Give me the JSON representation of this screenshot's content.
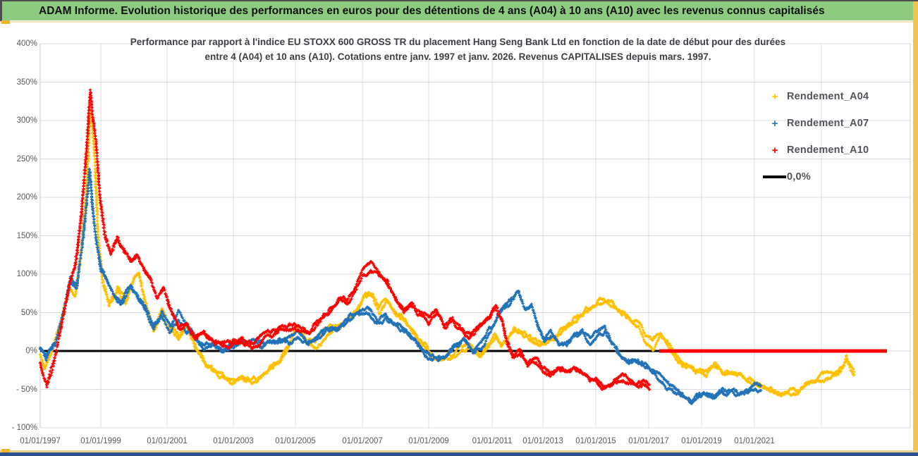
{
  "window": {
    "header_title": "ADAM Informe. Evolution historique des performances en euros pour des détentions de 4 ans (A04) à 10 ans (A10) avec les revenus connus capitalisés"
  },
  "chart_data": {
    "type": "scatter",
    "title_line1": "Performance par rapport à l'indice EU STOXX 600 GROSS TR  du placement Hang Seng Bank Ltd en fonction de la date de début pour des durées",
    "title_line2": "entre 4 (A04) et 10 ans (A10).  Cotations entre janv. 1997 et janv. 2026.  Revenus CAPITALISES depuis mars. 1997.",
    "grid": true,
    "y_axis": {
      "unit": "%",
      "min": -100,
      "max": 400,
      "step": 50,
      "tick_labels": [
        "400%",
        "350%",
        "300%",
        "250%",
        "200%",
        "150%",
        "100%",
        "50%",
        "0%",
        "- 50%",
        "- 100%"
      ]
    },
    "x_axis": {
      "ticks": [
        {
          "label": "01/01/1997",
          "year": 1997
        },
        {
          "label": "01/01/1999",
          "year": 1999
        },
        {
          "label": "01/01/2001",
          "year": 2001
        },
        {
          "label": "01/01/2003",
          "year": 2003
        },
        {
          "label": "01/01/2005",
          "year": 2005
        },
        {
          "label": "01/01/2007",
          "year": 2007
        },
        {
          "label": "01/01/2009",
          "year": 2009
        },
        {
          "label": "01/01/2011",
          "year": 2011
        },
        {
          "label": "01/01/2013",
          "year": 2013
        },
        {
          "label": "01/01/2015",
          "year": 2015
        },
        {
          "label": "01/01/2017",
          "year": 2017
        },
        {
          "label": "01/01/2019",
          "year": 2019
        },
        {
          "label": "01/01/2021",
          "year": 2021
        }
      ],
      "extra_gridline_years": [
        2023
      ],
      "range_note": "cotations janv. 1997 - janv. 2026"
    },
    "legend": [
      {
        "label": "Rendement_A04",
        "marker": "+",
        "color": "#FFC000"
      },
      {
        "label": "Rendement_A07",
        "marker": "+",
        "color": "#2272B8"
      },
      {
        "label": "Rendement_A10",
        "marker": "+",
        "color": "#FF0000"
      },
      {
        "label": "0,0%",
        "marker": "line",
        "color": "#000000"
      }
    ],
    "zero_line": {
      "label": "0,0%",
      "value": 0,
      "color": "#000000",
      "from_year": 1997,
      "to_year": 2026
    },
    "flat_zero_segment": {
      "series": "Rendement_A10",
      "value": 0,
      "color": "#FF0000",
      "from_year": 2017.4,
      "to_year": 2026
    },
    "series": [
      {
        "name": "Rendement_A04",
        "color": "#FFC000",
        "seed": 11,
        "points": [
          [
            1997.0,
            -5
          ],
          [
            1997.15,
            -22
          ],
          [
            1997.4,
            2
          ],
          [
            1997.7,
            40
          ],
          [
            1997.95,
            85
          ],
          [
            1998.15,
            72
          ],
          [
            1998.35,
            130
          ],
          [
            1998.5,
            195
          ],
          [
            1998.62,
            300
          ],
          [
            1998.68,
            310
          ],
          [
            1998.78,
            260
          ],
          [
            1998.9,
            150
          ],
          [
            1999.05,
            95
          ],
          [
            1999.25,
            60
          ],
          [
            1999.5,
            80
          ],
          [
            1999.75,
            65
          ],
          [
            2000.0,
            95
          ],
          [
            2000.15,
            100
          ],
          [
            2000.35,
            60
          ],
          [
            2000.6,
            30
          ],
          [
            2000.85,
            52
          ],
          [
            2001.1,
            30
          ],
          [
            2001.35,
            18
          ],
          [
            2001.6,
            30
          ],
          [
            2001.85,
            5
          ],
          [
            2002.1,
            -12
          ],
          [
            2002.4,
            -25
          ],
          [
            2002.7,
            -35
          ],
          [
            2003.0,
            -45
          ],
          [
            2003.3,
            -38
          ],
          [
            2003.6,
            -42
          ],
          [
            2003.9,
            -32
          ],
          [
            2004.2,
            -22
          ],
          [
            2004.5,
            -12
          ],
          [
            2004.8,
            5
          ],
          [
            2005.0,
            28
          ],
          [
            2005.3,
            15
          ],
          [
            2005.6,
            8
          ],
          [
            2005.9,
            22
          ],
          [
            2006.2,
            30
          ],
          [
            2006.5,
            38
          ],
          [
            2006.8,
            50
          ],
          [
            2007.05,
            68
          ],
          [
            2007.3,
            72
          ],
          [
            2007.5,
            52
          ],
          [
            2007.75,
            62
          ],
          [
            2008.0,
            48
          ],
          [
            2008.3,
            38
          ],
          [
            2008.6,
            18
          ],
          [
            2008.9,
            5
          ],
          [
            2009.1,
            -8
          ],
          [
            2009.4,
            -15
          ],
          [
            2009.7,
            -10
          ],
          [
            2010.0,
            2
          ],
          [
            2010.3,
            8
          ],
          [
            2010.6,
            -8
          ],
          [
            2010.9,
            5
          ],
          [
            2011.1,
            18
          ],
          [
            2011.35,
            5
          ],
          [
            2011.6,
            15
          ],
          [
            2011.9,
            28
          ],
          [
            2012.2,
            22
          ],
          [
            2012.5,
            15
          ],
          [
            2012.8,
            10
          ],
          [
            2013.1,
            8
          ],
          [
            2013.4,
            18
          ],
          [
            2013.7,
            28
          ],
          [
            2014.0,
            35
          ],
          [
            2014.3,
            45
          ],
          [
            2014.6,
            52
          ],
          [
            2014.9,
            60
          ],
          [
            2015.2,
            68
          ],
          [
            2015.45,
            65
          ],
          [
            2015.7,
            60
          ],
          [
            2016.0,
            50
          ],
          [
            2016.3,
            42
          ],
          [
            2016.6,
            38
          ],
          [
            2016.9,
            15
          ],
          [
            2017.15,
            8
          ],
          [
            2017.45,
            22
          ],
          [
            2017.7,
            12
          ],
          [
            2018.0,
            -8
          ],
          [
            2018.3,
            -18
          ],
          [
            2018.6,
            -22
          ],
          [
            2018.9,
            -25
          ],
          [
            2019.2,
            -28
          ],
          [
            2019.5,
            -18
          ],
          [
            2019.8,
            -26
          ],
          [
            2020.1,
            -22
          ],
          [
            2020.4,
            -28
          ],
          [
            2020.7,
            -32
          ],
          [
            2021.0,
            -40
          ],
          [
            2021.4,
            -48
          ],
          [
            2021.8,
            -55
          ],
          [
            2022.2,
            -52
          ],
          [
            2022.6,
            -42
          ],
          [
            2023.0,
            -35
          ],
          [
            2023.5,
            -32
          ],
          [
            2023.9,
            -28
          ],
          [
            2024.15,
            -10
          ],
          [
            2024.35,
            -22
          ],
          [
            2024.5,
            -28
          ]
        ]
      },
      {
        "name": "Rendement_A07",
        "color": "#2272B8",
        "seed": 22,
        "points": [
          [
            1997.0,
            3
          ],
          [
            1997.2,
            -12
          ],
          [
            1997.5,
            8
          ],
          [
            1997.8,
            50
          ],
          [
            1998.0,
            88
          ],
          [
            1998.2,
            78
          ],
          [
            1998.4,
            140
          ],
          [
            1998.55,
            200
          ],
          [
            1998.62,
            235
          ],
          [
            1998.72,
            185
          ],
          [
            1998.85,
            140
          ],
          [
            1999.0,
            105
          ],
          [
            1999.3,
            80
          ],
          [
            1999.6,
            62
          ],
          [
            1999.9,
            85
          ],
          [
            2000.1,
            72
          ],
          [
            2000.35,
            55
          ],
          [
            2000.6,
            32
          ],
          [
            2000.85,
            48
          ],
          [
            2001.1,
            28
          ],
          [
            2001.35,
            45
          ],
          [
            2001.6,
            30
          ],
          [
            2001.85,
            18
          ],
          [
            2002.1,
            8
          ],
          [
            2002.4,
            12
          ],
          [
            2002.7,
            -2
          ],
          [
            2003.0,
            4
          ],
          [
            2003.3,
            10
          ],
          [
            2003.6,
            14
          ],
          [
            2003.9,
            8
          ],
          [
            2004.2,
            12
          ],
          [
            2004.5,
            16
          ],
          [
            2004.8,
            12
          ],
          [
            2005.1,
            20
          ],
          [
            2005.4,
            12
          ],
          [
            2005.7,
            20
          ],
          [
            2006.0,
            30
          ],
          [
            2006.3,
            36
          ],
          [
            2006.6,
            42
          ],
          [
            2006.9,
            46
          ],
          [
            2007.2,
            50
          ],
          [
            2007.45,
            38
          ],
          [
            2007.7,
            42
          ],
          [
            2008.0,
            32
          ],
          [
            2008.3,
            28
          ],
          [
            2008.6,
            12
          ],
          [
            2008.9,
            -2
          ],
          [
            2009.2,
            -8
          ],
          [
            2009.5,
            -10
          ],
          [
            2009.8,
            5
          ],
          [
            2010.1,
            16
          ],
          [
            2010.4,
            -2
          ],
          [
            2010.7,
            8
          ],
          [
            2011.0,
            30
          ],
          [
            2011.3,
            50
          ],
          [
            2011.6,
            62
          ],
          [
            2011.85,
            70
          ],
          [
            2012.05,
            76
          ],
          [
            2012.3,
            55
          ],
          [
            2012.55,
            62
          ],
          [
            2012.8,
            35
          ],
          [
            2013.05,
            18
          ],
          [
            2013.3,
            25
          ],
          [
            2013.6,
            10
          ],
          [
            2013.9,
            12
          ],
          [
            2014.2,
            20
          ],
          [
            2014.5,
            24
          ],
          [
            2014.8,
            12
          ],
          [
            2015.1,
            20
          ],
          [
            2015.35,
            26
          ],
          [
            2015.6,
            10
          ],
          [
            2015.9,
            -5
          ],
          [
            2016.2,
            -10
          ],
          [
            2016.5,
            -8
          ],
          [
            2016.8,
            -14
          ],
          [
            2017.1,
            -20
          ],
          [
            2017.4,
            -32
          ],
          [
            2017.7,
            -42
          ],
          [
            2018.0,
            -50
          ],
          [
            2018.3,
            -56
          ],
          [
            2018.6,
            -60
          ],
          [
            2018.9,
            -57
          ],
          [
            2019.2,
            -55
          ],
          [
            2019.5,
            -58
          ],
          [
            2019.8,
            -52
          ],
          [
            2020.1,
            -56
          ],
          [
            2020.4,
            -60
          ],
          [
            2020.7,
            -52
          ],
          [
            2021.0,
            -44
          ],
          [
            2021.2,
            -46
          ]
        ]
      },
      {
        "name": "Rendement_A10",
        "color": "#FF0000",
        "seed": 33,
        "points": [
          [
            1997.0,
            -15
          ],
          [
            1997.1,
            -32
          ],
          [
            1997.22,
            -44
          ],
          [
            1997.45,
            -15
          ],
          [
            1997.7,
            35
          ],
          [
            1997.95,
            90
          ],
          [
            1998.15,
            115
          ],
          [
            1998.35,
            175
          ],
          [
            1998.5,
            250
          ],
          [
            1998.6,
            315
          ],
          [
            1998.65,
            340
          ],
          [
            1998.72,
            310
          ],
          [
            1998.82,
            280
          ],
          [
            1998.95,
            210
          ],
          [
            1999.1,
            155
          ],
          [
            1999.3,
            128
          ],
          [
            1999.5,
            150
          ],
          [
            1999.7,
            132
          ],
          [
            1999.9,
            118
          ],
          [
            2000.1,
            125
          ],
          [
            2000.3,
            105
          ],
          [
            2000.5,
            92
          ],
          [
            2000.7,
            68
          ],
          [
            2000.9,
            82
          ],
          [
            2001.1,
            55
          ],
          [
            2001.35,
            30
          ],
          [
            2001.6,
            35
          ],
          [
            2001.85,
            15
          ],
          [
            2002.1,
            25
          ],
          [
            2002.4,
            10
          ],
          [
            2002.7,
            6
          ],
          [
            2003.0,
            10
          ],
          [
            2003.3,
            14
          ],
          [
            2003.6,
            8
          ],
          [
            2003.9,
            16
          ],
          [
            2004.2,
            22
          ],
          [
            2004.5,
            28
          ],
          [
            2004.8,
            32
          ],
          [
            2005.1,
            30
          ],
          [
            2005.4,
            24
          ],
          [
            2005.7,
            40
          ],
          [
            2006.0,
            55
          ],
          [
            2006.3,
            72
          ],
          [
            2006.55,
            65
          ],
          [
            2006.8,
            85
          ],
          [
            2007.05,
            105
          ],
          [
            2007.25,
            108
          ],
          [
            2007.5,
            98
          ],
          [
            2007.75,
            92
          ],
          [
            2008.0,
            68
          ],
          [
            2008.25,
            52
          ],
          [
            2008.5,
            62
          ],
          [
            2008.75,
            48
          ],
          [
            2009.0,
            42
          ],
          [
            2009.25,
            52
          ],
          [
            2009.5,
            32
          ],
          [
            2009.75,
            42
          ],
          [
            2010.0,
            28
          ],
          [
            2010.3,
            18
          ],
          [
            2010.6,
            32
          ],
          [
            2010.9,
            45
          ],
          [
            2011.15,
            55
          ],
          [
            2011.4,
            35
          ],
          [
            2011.6,
            8
          ],
          [
            2011.8,
            -8
          ],
          [
            2012.1,
            -4
          ],
          [
            2012.4,
            -18
          ],
          [
            2012.7,
            -12
          ],
          [
            2013.0,
            -22
          ],
          [
            2013.3,
            -28
          ],
          [
            2013.6,
            -24
          ],
          [
            2013.9,
            -28
          ],
          [
            2014.2,
            -24
          ],
          [
            2014.5,
            -30
          ],
          [
            2014.8,
            -36
          ],
          [
            2015.1,
            -40
          ],
          [
            2015.4,
            -44
          ],
          [
            2015.7,
            -38
          ],
          [
            2016.0,
            -34
          ],
          [
            2016.3,
            -38
          ],
          [
            2016.6,
            -42
          ],
          [
            2016.9,
            -40
          ],
          [
            2017.05,
            -44
          ]
        ]
      }
    ]
  }
}
